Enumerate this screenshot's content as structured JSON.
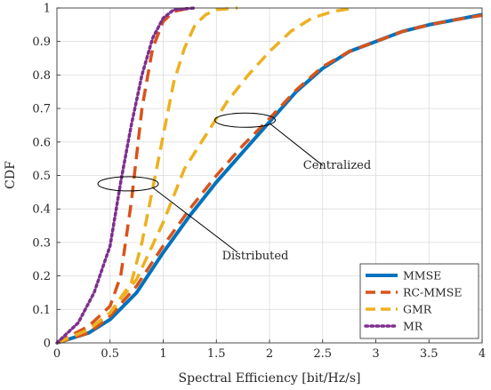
{
  "chart_data": {
    "type": "line",
    "title": "",
    "xlabel": "Spectral Efficiency [bit/Hz/s]",
    "ylabel": "CDF",
    "xlim": [
      0,
      4
    ],
    "ylim": [
      0,
      1
    ],
    "x_ticks": [
      "0",
      "0.5",
      "1",
      "1.5",
      "2",
      "2.5",
      "3",
      "3.5",
      "4"
    ],
    "y_ticks": [
      "0",
      "0.1",
      "0.2",
      "0.3",
      "0.4",
      "0.5",
      "0.6",
      "0.7",
      "0.8",
      "0.9",
      "1"
    ],
    "grid": true,
    "legend_position": "bottom-right",
    "series": [
      {
        "name": "MMSE",
        "group": "centralized",
        "color": "#0072BD",
        "style": "solid",
        "points": [
          [
            0.0,
            0.0
          ],
          [
            0.3,
            0.03
          ],
          [
            0.5,
            0.07
          ],
          [
            0.75,
            0.15
          ],
          [
            1.0,
            0.27
          ],
          [
            1.25,
            0.38
          ],
          [
            1.5,
            0.48
          ],
          [
            1.75,
            0.57
          ],
          [
            2.0,
            0.66
          ],
          [
            2.25,
            0.75
          ],
          [
            2.5,
            0.82
          ],
          [
            2.75,
            0.87
          ],
          [
            3.0,
            0.9
          ],
          [
            3.25,
            0.93
          ],
          [
            3.5,
            0.95
          ],
          [
            3.75,
            0.965
          ],
          [
            4.0,
            0.98
          ]
        ]
      },
      {
        "name": "RC-MMSE",
        "group": "centralized",
        "color": "#D95319",
        "style": "dashed",
        "points": [
          [
            0.0,
            0.0
          ],
          [
            0.3,
            0.03
          ],
          [
            0.5,
            0.08
          ],
          [
            0.75,
            0.17
          ],
          [
            1.0,
            0.29
          ],
          [
            1.25,
            0.4
          ],
          [
            1.5,
            0.5
          ],
          [
            1.75,
            0.59
          ],
          [
            2.0,
            0.67
          ],
          [
            2.25,
            0.755
          ],
          [
            2.5,
            0.825
          ],
          [
            2.75,
            0.87
          ],
          [
            3.0,
            0.9
          ],
          [
            3.25,
            0.93
          ],
          [
            3.5,
            0.95
          ],
          [
            3.75,
            0.965
          ],
          [
            4.0,
            0.978
          ]
        ]
      },
      {
        "name": "GMR",
        "group": "centralized",
        "color": "#EDB120",
        "style": "dashed",
        "points": [
          [
            0.0,
            0.0
          ],
          [
            0.3,
            0.04
          ],
          [
            0.5,
            0.09
          ],
          [
            0.75,
            0.19
          ],
          [
            1.0,
            0.36
          ],
          [
            1.2,
            0.52
          ],
          [
            1.4,
            0.62
          ],
          [
            1.6,
            0.72
          ],
          [
            1.8,
            0.8
          ],
          [
            2.0,
            0.87
          ],
          [
            2.2,
            0.93
          ],
          [
            2.4,
            0.97
          ],
          [
            2.6,
            0.99
          ],
          [
            2.8,
            1.0
          ]
        ]
      },
      {
        "name": "RC-MMSE",
        "group": "distributed",
        "color": "#D95319",
        "style": "dashed",
        "points": [
          [
            0.0,
            0.0
          ],
          [
            0.3,
            0.05
          ],
          [
            0.5,
            0.11
          ],
          [
            0.6,
            0.2
          ],
          [
            0.7,
            0.42
          ],
          [
            0.8,
            0.7
          ],
          [
            0.9,
            0.88
          ],
          [
            1.0,
            0.96
          ],
          [
            1.1,
            0.99
          ],
          [
            1.25,
            1.0
          ]
        ]
      },
      {
        "name": "GMR",
        "group": "distributed",
        "color": "#EDB120",
        "style": "dashed",
        "points": [
          [
            0.0,
            0.0
          ],
          [
            0.3,
            0.04
          ],
          [
            0.5,
            0.09
          ],
          [
            0.7,
            0.18
          ],
          [
            0.8,
            0.3
          ],
          [
            0.9,
            0.46
          ],
          [
            1.0,
            0.62
          ],
          [
            1.1,
            0.78
          ],
          [
            1.2,
            0.88
          ],
          [
            1.3,
            0.95
          ],
          [
            1.4,
            0.98
          ],
          [
            1.5,
            0.995
          ],
          [
            1.7,
            1.0
          ]
        ]
      },
      {
        "name": "MR",
        "group": "distributed",
        "color": "#7E2F8E",
        "style": "dotted",
        "points": [
          [
            0.0,
            0.0
          ],
          [
            0.2,
            0.06
          ],
          [
            0.35,
            0.15
          ],
          [
            0.5,
            0.29
          ],
          [
            0.6,
            0.48
          ],
          [
            0.7,
            0.65
          ],
          [
            0.8,
            0.8
          ],
          [
            0.9,
            0.91
          ],
          [
            1.0,
            0.97
          ],
          [
            1.1,
            0.995
          ],
          [
            1.3,
            1.0
          ]
        ]
      }
    ],
    "legend": [
      {
        "label": "MMSE",
        "color": "#0072BD",
        "style": "solid"
      },
      {
        "label": "RC-MMSE",
        "color": "#D95319",
        "style": "dashed"
      },
      {
        "label": "GMR",
        "color": "#EDB120",
        "style": "dashed"
      },
      {
        "label": "MR",
        "color": "#7E2F8E",
        "style": "dotted"
      }
    ],
    "annotations": [
      {
        "text": "Centralized",
        "ellipse_center": [
          1.77,
          0.665
        ],
        "arrow_to": [
          2.5,
          0.53
        ]
      },
      {
        "text": "Distributed",
        "ellipse_center": [
          0.67,
          0.475
        ],
        "arrow_to": [
          1.7,
          0.27
        ]
      }
    ]
  }
}
